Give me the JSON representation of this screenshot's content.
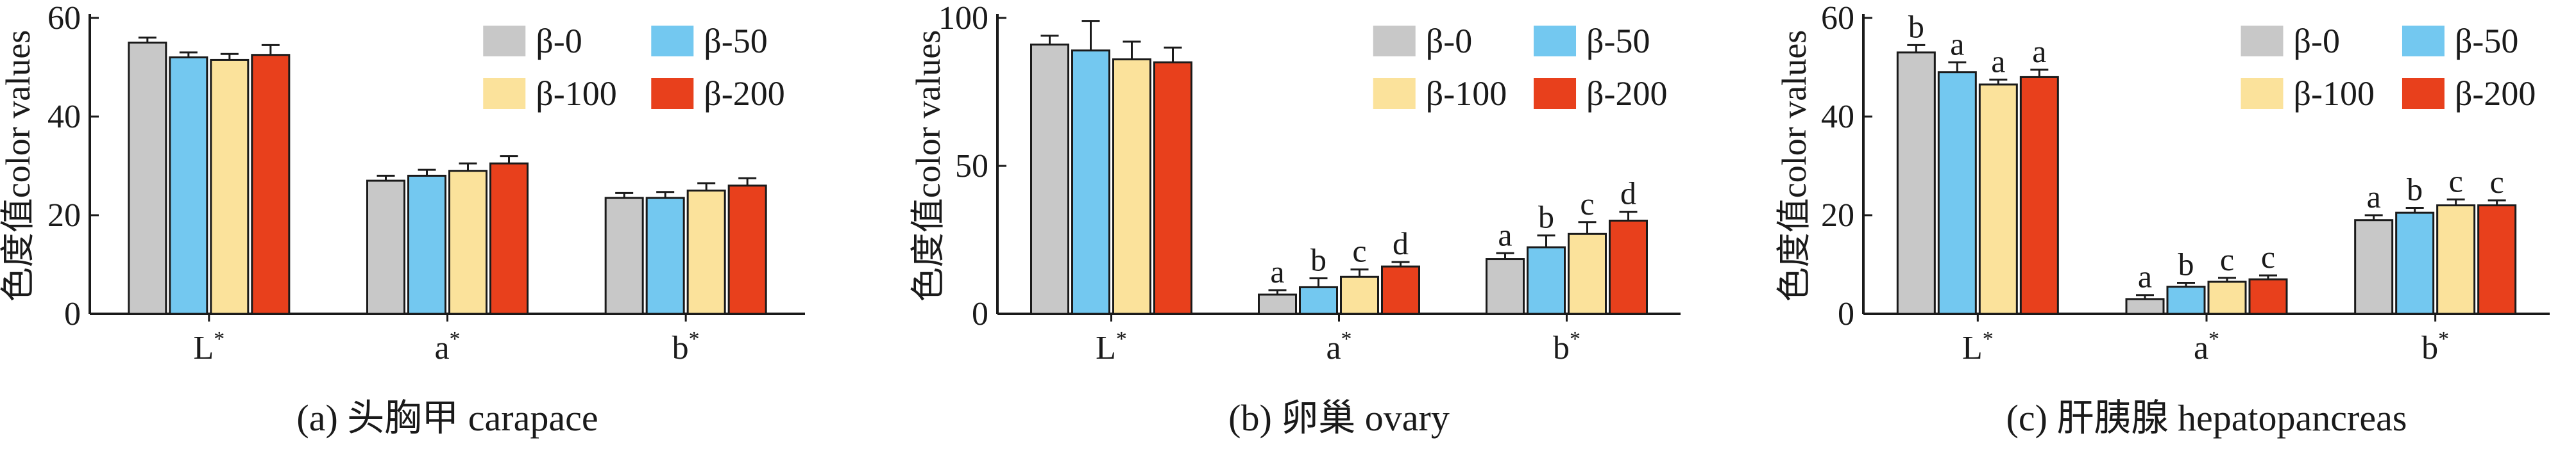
{
  "colors": {
    "β-0": "#c8c8c8",
    "β-50": "#73c8f0",
    "β-100": "#fbe29b",
    "β-200": "#e8401c",
    "axis": "#1a1a1a"
  },
  "chart_data": [
    {
      "type": "bar",
      "caption": "(a) 头胸甲 carapace",
      "ylabel": "色度值color values",
      "xlabel": "",
      "categories": [
        "L*",
        "a*",
        "b*"
      ],
      "ylim": [
        0,
        60
      ],
      "yticks": [
        0,
        20,
        40,
        60
      ],
      "legend_position": "top-right",
      "series": [
        {
          "name": "β-0",
          "values": [
            55,
            27,
            23.5
          ],
          "errors": [
            1.0,
            1.0,
            1.0
          ]
        },
        {
          "name": "β-50",
          "values": [
            52,
            28,
            23.5
          ],
          "errors": [
            1.0,
            1.2,
            1.2
          ]
        },
        {
          "name": "β-100",
          "values": [
            51.5,
            29,
            25
          ],
          "errors": [
            1.2,
            1.5,
            1.5
          ]
        },
        {
          "name": "β-200",
          "values": [
            52.5,
            30.5,
            26
          ],
          "errors": [
            2.0,
            1.5,
            1.5
          ]
        }
      ],
      "labels": null
    },
    {
      "type": "bar",
      "caption": "(b) 卵巢 ovary",
      "ylabel": "色度值color values",
      "xlabel": "",
      "categories": [
        "L*",
        "a*",
        "b*"
      ],
      "ylim": [
        0,
        100
      ],
      "yticks": [
        0,
        50,
        100
      ],
      "legend_position": "top-right",
      "series": [
        {
          "name": "β-0",
          "values": [
            91,
            6.5,
            18.5
          ],
          "errors": [
            3,
            1.5,
            2
          ]
        },
        {
          "name": "β-50",
          "values": [
            89,
            9,
            22.5
          ],
          "errors": [
            10,
            3,
            4
          ]
        },
        {
          "name": "β-100",
          "values": [
            86,
            12.5,
            27
          ],
          "errors": [
            6,
            2.5,
            4
          ]
        },
        {
          "name": "β-200",
          "values": [
            85,
            16,
            31.5
          ],
          "errors": [
            5,
            1.5,
            3
          ]
        }
      ],
      "labels": [
        [
          "",
          "a",
          "a"
        ],
        [
          "",
          "b",
          "b"
        ],
        [
          "",
          "c",
          "c"
        ],
        [
          "",
          "d",
          "d"
        ]
      ]
    },
    {
      "type": "bar",
      "caption": "(c) 肝胰腺 hepatopancreas",
      "ylabel": "色度值color values",
      "xlabel": "",
      "categories": [
        "L*",
        "a*",
        "b*"
      ],
      "ylim": [
        0,
        60
      ],
      "yticks": [
        0,
        20,
        40,
        60
      ],
      "legend_position": "top-right",
      "series": [
        {
          "name": "β-0",
          "values": [
            53,
            3,
            19
          ],
          "errors": [
            1.5,
            0.8,
            1.0
          ]
        },
        {
          "name": "β-50",
          "values": [
            49,
            5.5,
            20.5
          ],
          "errors": [
            2,
            0.8,
            1.0
          ]
        },
        {
          "name": "β-100",
          "values": [
            46.5,
            6.5,
            22
          ],
          "errors": [
            1,
            0.8,
            1.2
          ]
        },
        {
          "name": "β-200",
          "values": [
            48,
            7,
            22
          ],
          "errors": [
            1.5,
            0.8,
            1.0
          ]
        }
      ],
      "labels": [
        [
          "b",
          "a",
          "a"
        ],
        [
          "a",
          "b",
          "b"
        ],
        [
          "a",
          "c",
          "c"
        ],
        [
          "a",
          "c",
          "c"
        ]
      ]
    }
  ]
}
